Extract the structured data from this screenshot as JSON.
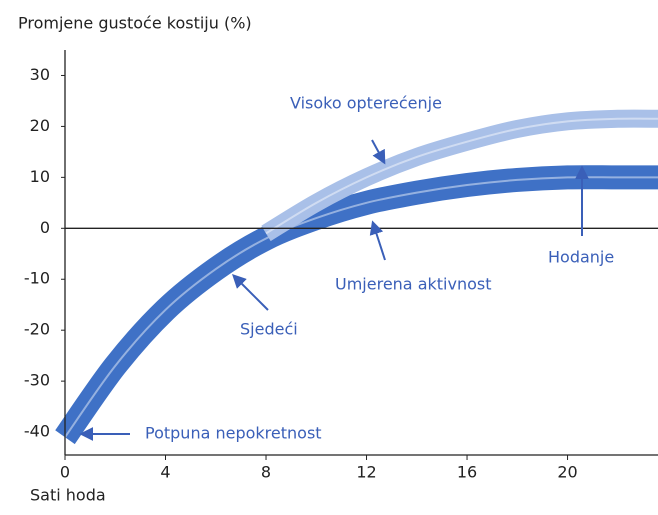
{
  "chart_data": {
    "type": "line",
    "title": "Promjene gustoće kostiju (%)",
    "x_label": "Sati hoda",
    "xlim": [
      0,
      23.6
    ],
    "ylim": [
      -44.5,
      35
    ],
    "xticks": [
      0,
      4,
      8,
      12,
      16,
      20
    ],
    "yticks": [
      30,
      20,
      10,
      0,
      -10,
      -20,
      -30,
      -40
    ],
    "series": [
      {
        "color": "#3f71c6",
        "x": [
          0,
          2,
          4,
          6,
          8,
          10,
          12,
          14,
          16,
          18,
          20,
          22,
          23.6
        ],
        "values": [
          -41,
          -27,
          -16,
          -8,
          -2,
          2,
          5,
          7,
          8.5,
          9.5,
          10,
          10,
          10
        ]
      },
      {
        "color": "#a9c0e8",
        "x": [
          8,
          10,
          12,
          14,
          16,
          18,
          20,
          22,
          23.6
        ],
        "values": [
          -1,
          5,
          10,
          14,
          17,
          19.5,
          21,
          21.5,
          21.5
        ]
      }
    ],
    "annotations": [
      "Visoko opterećenje",
      "Hodanje",
      "Umjerena aktivnost",
      "Sjedeći",
      "Potpuna nepokretnost"
    ]
  }
}
